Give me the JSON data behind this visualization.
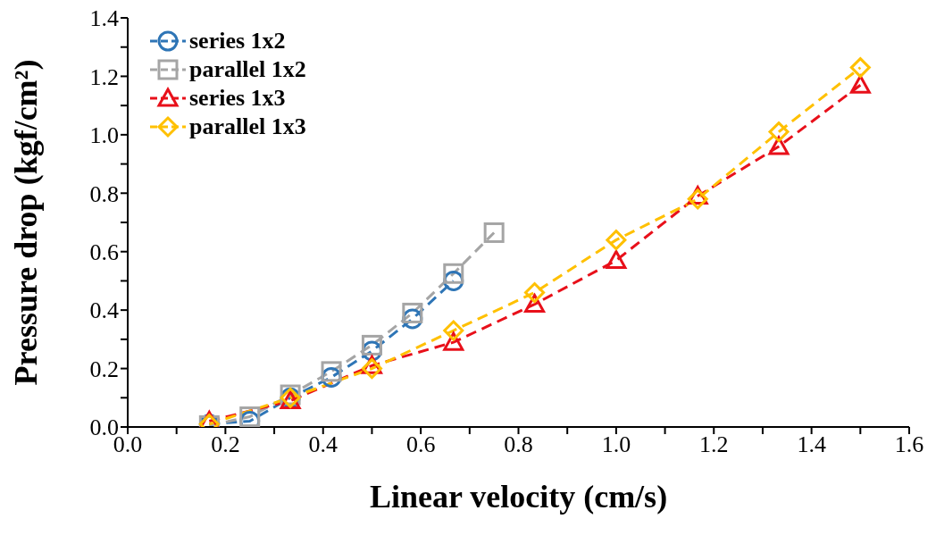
{
  "chart_data": {
    "type": "line",
    "xlabel": "Linear velocity (cm/s)",
    "ylabel": "Pressure drop (kgf/cm²)",
    "xlim": [
      0,
      1.6
    ],
    "ylim": [
      0,
      1.4
    ],
    "xticks": [
      {
        "value": 0,
        "label": "0.0"
      },
      {
        "value": 0.1,
        "label": null
      },
      0.2,
      {
        "value": 0.3,
        "label": null
      },
      0.4,
      {
        "value": 0.5,
        "label": null
      },
      0.6,
      {
        "value": 0.7,
        "label": null
      },
      0.8,
      {
        "value": 0.9,
        "label": null
      },
      {
        "value": 1,
        "label": "1.0"
      },
      {
        "value": 1.1,
        "label": null
      },
      1.2,
      {
        "value": 1.3,
        "label": null
      },
      1.4,
      {
        "value": 1.5,
        "label": null
      },
      1.6
    ],
    "yticks": [
      {
        "value": 0,
        "label": "0.0"
      },
      {
        "value": 0.1,
        "label": null
      },
      0.2,
      {
        "value": 0.3,
        "label": null
      },
      0.4,
      {
        "value": 0.5,
        "label": null
      },
      0.6,
      {
        "value": 0.7,
        "label": null
      },
      0.8,
      {
        "value": 0.9,
        "label": null
      },
      {
        "value": 1,
        "label": "1.0"
      },
      {
        "value": 1.1,
        "label": null
      },
      1.2,
      {
        "value": 1.3,
        "label": null
      },
      1.4
    ],
    "legend": "top left",
    "line_style": "dashed",
    "grid": false,
    "series": [
      {
        "name": "series 1x2",
        "color": "#2e75b6",
        "marker": "circle",
        "x": [
          0.167,
          0.25,
          0.333,
          0.417,
          0.5,
          0.583,
          0.667
        ],
        "values": [
          0.01,
          0.02,
          0.1,
          0.17,
          0.26,
          0.37,
          0.5
        ]
      },
      {
        "name": "parallel 1x2",
        "color": "#a5a5a5",
        "marker": "square",
        "x": [
          0.167,
          0.25,
          0.333,
          0.417,
          0.5,
          0.583,
          0.667,
          0.75
        ],
        "values": [
          0.005,
          0.035,
          0.11,
          0.19,
          0.28,
          0.39,
          0.525,
          0.665
        ]
      },
      {
        "name": "series 1x3",
        "color": "#e8101a",
        "marker": "triangle",
        "x": [
          0.167,
          0.333,
          0.5,
          0.667,
          0.833,
          1.0,
          1.167,
          1.333,
          1.5
        ],
        "values": [
          0.02,
          0.09,
          0.21,
          0.29,
          0.42,
          0.57,
          0.79,
          0.96,
          1.17
        ]
      },
      {
        "name": "parallel 1x3",
        "color": "#ffc000",
        "marker": "diamond",
        "x": [
          0.167,
          0.333,
          0.5,
          0.667,
          0.833,
          1.0,
          1.167,
          1.333,
          1.5
        ],
        "values": [
          0.01,
          0.1,
          0.2,
          0.33,
          0.46,
          0.64,
          0.78,
          1.01,
          1.23
        ]
      }
    ]
  }
}
